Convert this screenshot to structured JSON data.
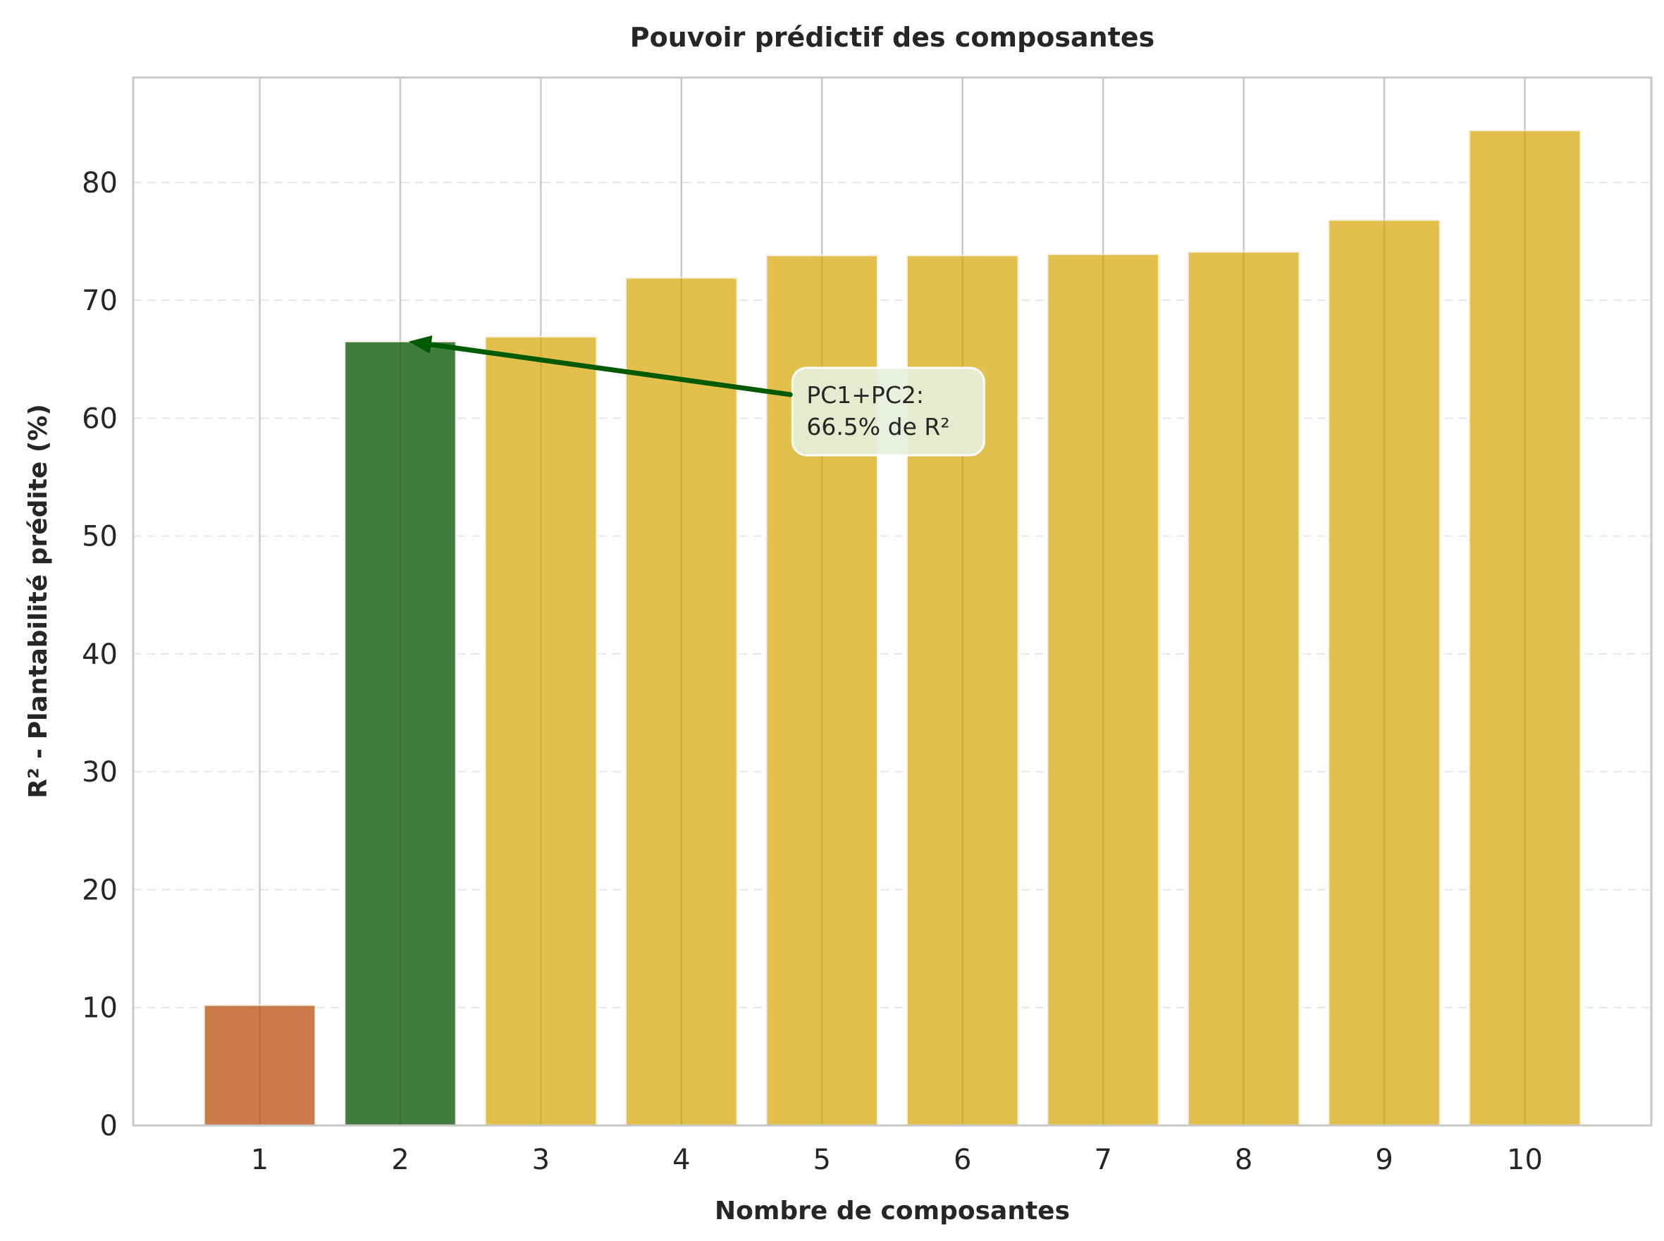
{
  "chart_data": {
    "type": "bar",
    "title": "Pouvoir prédictif des composantes",
    "xlabel": "Nombre de composantes",
    "ylabel": "R² - Plantabilité prédite (%)",
    "categories": [
      "1",
      "2",
      "3",
      "4",
      "5",
      "6",
      "7",
      "8",
      "9",
      "10"
    ],
    "values": [
      10.2,
      66.5,
      66.9,
      71.9,
      73.8,
      73.8,
      73.9,
      74.1,
      76.8,
      84.4
    ],
    "bar_colors": [
      "#c8733f",
      "#357533",
      "#e2bc42",
      "#e2bc42",
      "#e2bc42",
      "#e2bc42",
      "#e2bc42",
      "#e2bc42",
      "#e2bc42",
      "#e2bc42"
    ],
    "ylim": [
      0,
      88.9
    ],
    "yticks": [
      0,
      10,
      20,
      30,
      40,
      50,
      60,
      70,
      80
    ],
    "xlim": [
      0.1,
      10.9
    ],
    "grid": true,
    "annotation": {
      "lines": [
        "PC1+PC2:",
        "66.5% de R²"
      ],
      "target_x": 2,
      "target_y": 66.5,
      "text_x": 4.9,
      "text_y": 62,
      "arrow_color": "#005a00",
      "box_color": "#e6f0dc"
    }
  }
}
